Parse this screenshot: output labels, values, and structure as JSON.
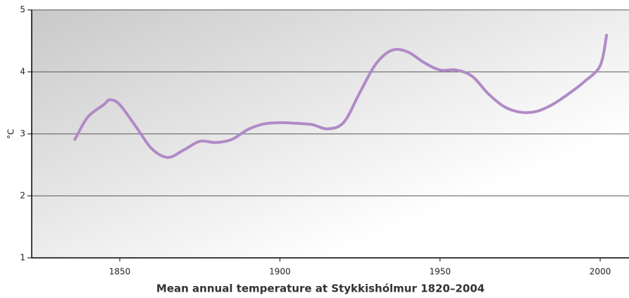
{
  "chart_data": {
    "type": "line",
    "title": "Mean annual temperature at Stykkishólmur 1820–2004",
    "y_label": "°C",
    "x": [
      1836,
      1840,
      1845,
      1847,
      1850,
      1855,
      1860,
      1865,
      1870,
      1875,
      1880,
      1885,
      1890,
      1895,
      1900,
      1905,
      1910,
      1915,
      1920,
      1925,
      1930,
      1935,
      1940,
      1945,
      1950,
      1955,
      1960,
      1965,
      1970,
      1975,
      1980,
      1985,
      1990,
      1995,
      2000,
      2002
    ],
    "series": [
      {
        "name": "Mean annual temperature",
        "color": "#b08ac6",
        "values": [
          2.91,
          3.27,
          3.47,
          3.55,
          3.47,
          3.12,
          2.76,
          2.62,
          2.74,
          2.88,
          2.86,
          2.91,
          3.07,
          3.16,
          3.18,
          3.17,
          3.15,
          3.08,
          3.19,
          3.67,
          4.13,
          4.35,
          4.32,
          4.15,
          4.03,
          4.03,
          3.93,
          3.65,
          3.44,
          3.35,
          3.36,
          3.47,
          3.64,
          3.84,
          4.1,
          4.59
        ]
      }
    ],
    "xlim": [
      1822.5,
      2009
    ],
    "xticks": [
      1850,
      1900,
      1950,
      2000
    ],
    "ylim": [
      1,
      5
    ],
    "yticks": [
      1,
      2,
      3,
      4,
      5
    ],
    "grid": true
  }
}
